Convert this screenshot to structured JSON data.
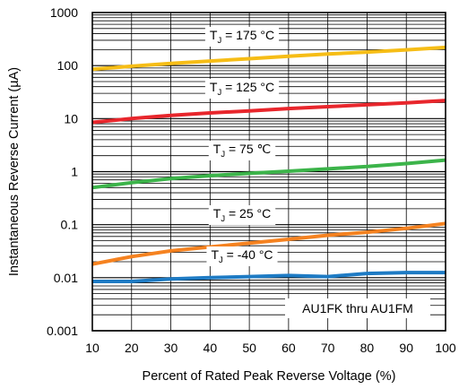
{
  "chart_data": {
    "type": "line",
    "title": "",
    "xlabel": "Percent of Rated Peak Reverse Voltage (%)",
    "ylabel": "Instantaneous Reverse Current (µA)",
    "xlim": [
      10,
      100
    ],
    "ylim": [
      0.001,
      1000
    ],
    "yscale": "log",
    "grid": true,
    "x_ticks": [
      "10",
      "20",
      "30",
      "40",
      "50",
      "60",
      "70",
      "80",
      "90",
      "100"
    ],
    "y_ticks": [
      "1000",
      "100",
      "10",
      "1",
      "0.1",
      "0.01",
      "0.001"
    ],
    "annotation": "AU1FK thru AU1FM",
    "series": [
      {
        "name": "TJ = 175 °C",
        "label": {
          "prefix": "T",
          "sub": "J",
          "suffix": " = 175 °C"
        },
        "color": "#f6bd16",
        "x": [
          10,
          20,
          30,
          40,
          50,
          60,
          70,
          80,
          90,
          100
        ],
        "y": [
          85,
          97,
          110,
          122,
          135,
          150,
          165,
          180,
          198,
          220
        ]
      },
      {
        "name": "TJ = 125 °C",
        "label": {
          "prefix": "T",
          "sub": "J",
          "suffix": " = 125 °C"
        },
        "color": "#e8262c",
        "x": [
          10,
          20,
          30,
          40,
          50,
          60,
          70,
          80,
          90,
          100
        ],
        "y": [
          8.5,
          10,
          11.5,
          12.8,
          14,
          15.5,
          16.8,
          18.2,
          19.8,
          22
        ]
      },
      {
        "name": "TJ = 75 ℃",
        "label": {
          "prefix": "T",
          "sub": "J",
          "suffix": " = 75 ℃"
        },
        "color": "#3cb44a",
        "x": [
          10,
          20,
          30,
          40,
          50,
          60,
          70,
          80,
          90,
          100
        ],
        "y": [
          0.5,
          0.62,
          0.74,
          0.84,
          0.93,
          1.02,
          1.13,
          1.25,
          1.42,
          1.65
        ]
      },
      {
        "name": "TJ = 25 °C",
        "label": {
          "prefix": "T",
          "sub": "J",
          "suffix": " = 25 °C"
        },
        "color": "#f58220",
        "x": [
          10,
          20,
          30,
          40,
          50,
          60,
          70,
          80,
          90,
          100
        ],
        "y": [
          0.018,
          0.025,
          0.032,
          0.038,
          0.045,
          0.053,
          0.063,
          0.072,
          0.085,
          0.105
        ]
      },
      {
        "name": "TJ = -40 °C",
        "label": {
          "prefix": "T",
          "sub": "J",
          "suffix": " = -40 °C"
        },
        "color": "#1e7bc4",
        "x": [
          10,
          20,
          30,
          40,
          50,
          60,
          70,
          80,
          90,
          100
        ],
        "y": [
          0.0085,
          0.0085,
          0.0095,
          0.01,
          0.0105,
          0.011,
          0.0105,
          0.012,
          0.0125,
          0.0125
        ]
      }
    ]
  }
}
